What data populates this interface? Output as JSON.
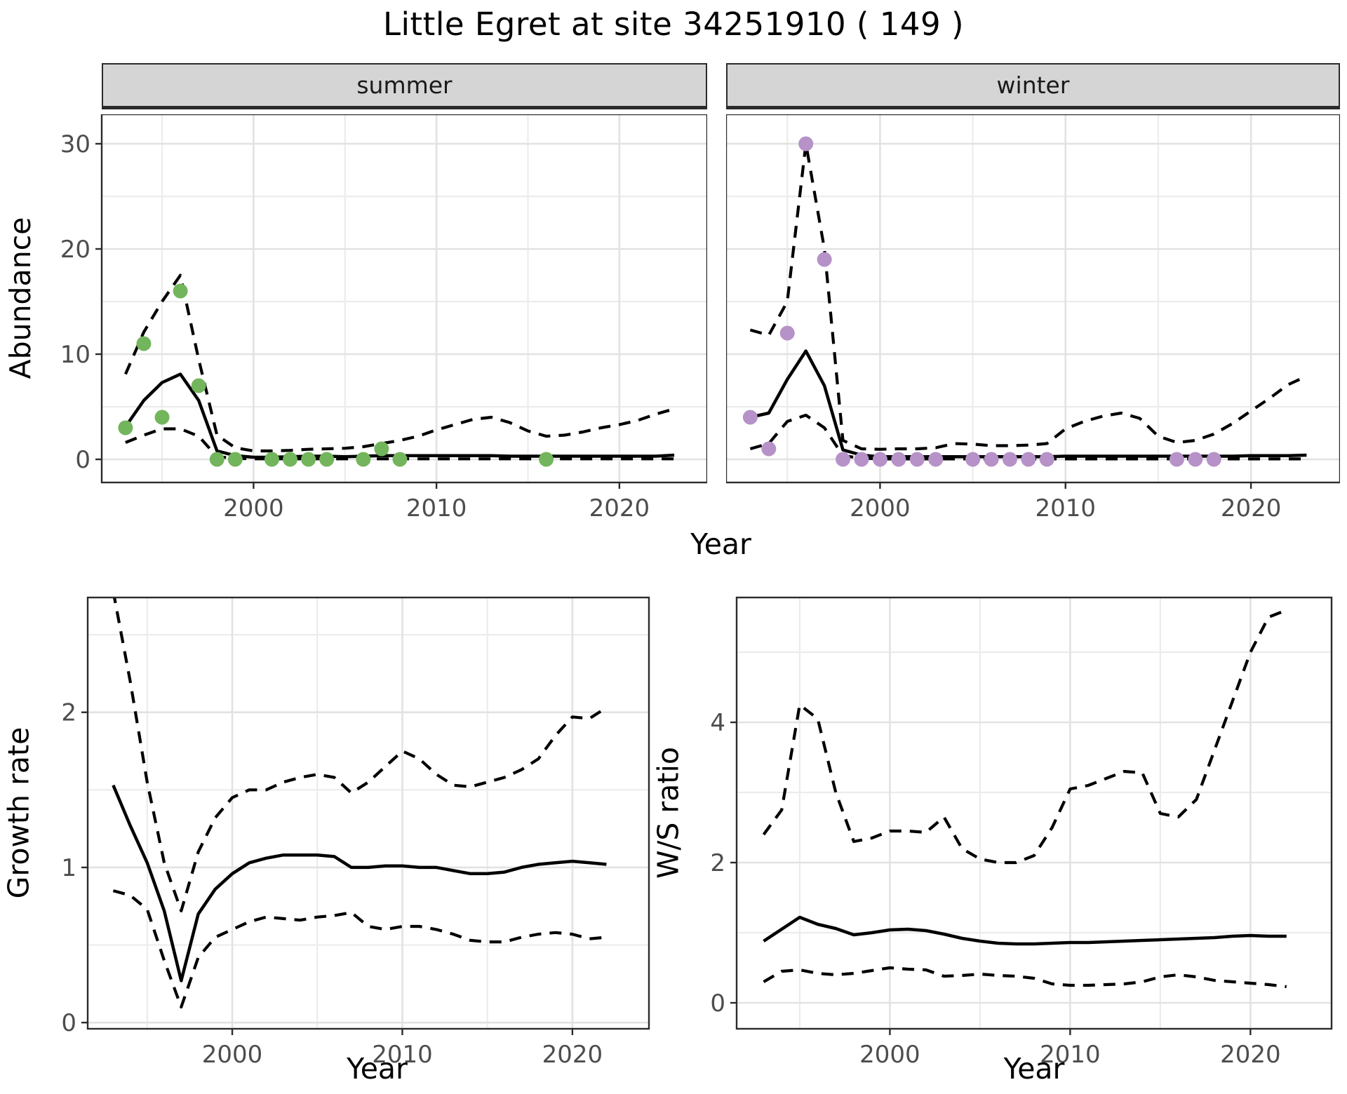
{
  "title": "Little Egret at site 34251910 ( 149 )",
  "top_row": {
    "y_axis_title": "Abundance",
    "x_axis_title": "Year"
  },
  "colors": {
    "summer_point": "#73b55c",
    "winter_point": "#b692c8",
    "line": "#000000",
    "grid_major": "#e2e2e2",
    "grid_minor": "#ececec",
    "panel_border": "#2b2b2b",
    "strip_bg": "#d5d5d5",
    "tick_label": "#4d4d4d",
    "background": "#ffffff"
  },
  "chart_data": [
    {
      "type": "line",
      "facet_label": "summer",
      "ylabel": "Abundance",
      "xlabel": "Year",
      "legend": "none",
      "grid": true,
      "xlim": [
        1991.7,
        2024.8
      ],
      "ylim": [
        -2.2,
        32.8
      ],
      "xticks": [
        2000,
        2010,
        2020
      ],
      "xticks_minor": [
        1995,
        2005,
        2015
      ],
      "yticks": [
        0,
        10,
        20,
        30
      ],
      "yticks_minor": [
        5,
        15,
        25
      ],
      "show_y_tick_labels": true,
      "x": [
        1993,
        1994,
        1995,
        1996,
        1997,
        1998,
        1999,
        2000,
        2001,
        2002,
        2003,
        2004,
        2005,
        2006,
        2007,
        2008,
        2009,
        2010,
        2011,
        2012,
        2013,
        2014,
        2015,
        2016,
        2017,
        2018,
        2019,
        2020,
        2021,
        2022,
        2023
      ],
      "series": [
        {
          "name": "fit",
          "style": "solid",
          "values": [
            3.1,
            5.6,
            7.3,
            8.1,
            5.6,
            0.8,
            0.35,
            0.2,
            0.2,
            0.25,
            0.3,
            0.3,
            0.25,
            0.3,
            0.35,
            0.35,
            0.35,
            0.35,
            0.35,
            0.35,
            0.35,
            0.3,
            0.3,
            0.3,
            0.3,
            0.3,
            0.3,
            0.3,
            0.3,
            0.3,
            0.4
          ]
        },
        {
          "name": "upper_ci",
          "style": "dashed",
          "values": [
            8.1,
            12.1,
            15.0,
            17.5,
            9.5,
            2.3,
            1.1,
            0.8,
            0.8,
            0.85,
            0.95,
            1.0,
            1.05,
            1.2,
            1.5,
            1.8,
            2.2,
            2.8,
            3.3,
            3.8,
            4.0,
            3.5,
            2.7,
            2.2,
            2.3,
            2.6,
            3.0,
            3.3,
            3.7,
            4.3,
            4.8
          ]
        },
        {
          "name": "lower_ci",
          "style": "dashed",
          "values": [
            1.6,
            2.3,
            2.9,
            2.9,
            2.2,
            0.25,
            0.1,
            0.05,
            0.05,
            0.05,
            0.05,
            0.05,
            0.05,
            0.05,
            0.05,
            0.05,
            0.05,
            0.05,
            0.05,
            0.05,
            0.05,
            0.05,
            0.05,
            0.05,
            0.05,
            0.05,
            0.05,
            0.05,
            0.05,
            0.05,
            0.05
          ]
        }
      ],
      "points": {
        "color": "#73b55c",
        "data": [
          [
            1993,
            3
          ],
          [
            1994,
            11
          ],
          [
            1995,
            4
          ],
          [
            1996,
            16
          ],
          [
            1997,
            7
          ],
          [
            1998,
            0
          ],
          [
            1999,
            0
          ],
          [
            2001,
            0
          ],
          [
            2002,
            0
          ],
          [
            2003,
            0
          ],
          [
            2004,
            0
          ],
          [
            2006,
            0
          ],
          [
            2007,
            1
          ],
          [
            2008,
            0
          ],
          [
            2016,
            0
          ]
        ]
      }
    },
    {
      "type": "line",
      "facet_label": "winter",
      "ylabel": "Abundance",
      "xlabel": "Year",
      "legend": "none",
      "grid": true,
      "xlim": [
        1991.7,
        2024.8
      ],
      "ylim": [
        -2.2,
        32.8
      ],
      "xticks": [
        2000,
        2010,
        2020
      ],
      "xticks_minor": [
        1995,
        2005,
        2015
      ],
      "yticks": [
        0,
        10,
        20,
        30
      ],
      "yticks_minor": [
        5,
        15,
        25
      ],
      "show_y_tick_labels": false,
      "x": [
        1993,
        1994,
        1995,
        1996,
        1997,
        1998,
        1999,
        2000,
        2001,
        2002,
        2003,
        2004,
        2005,
        2006,
        2007,
        2008,
        2009,
        2010,
        2011,
        2012,
        2013,
        2014,
        2015,
        2016,
        2017,
        2018,
        2019,
        2020,
        2021,
        2022,
        2023
      ],
      "series": [
        {
          "name": "fit",
          "style": "solid",
          "values": [
            4.0,
            4.4,
            7.6,
            10.3,
            7.0,
            0.9,
            0.4,
            0.25,
            0.25,
            0.25,
            0.25,
            0.25,
            0.25,
            0.25,
            0.25,
            0.25,
            0.25,
            0.3,
            0.3,
            0.3,
            0.3,
            0.3,
            0.3,
            0.3,
            0.3,
            0.3,
            0.3,
            0.35,
            0.35,
            0.35,
            0.4
          ]
        },
        {
          "name": "upper_ci",
          "style": "dashed",
          "values": [
            12.3,
            11.8,
            15.0,
            30.0,
            20.0,
            1.8,
            1.0,
            0.95,
            1.0,
            1.0,
            1.1,
            1.5,
            1.45,
            1.3,
            1.3,
            1.35,
            1.5,
            2.9,
            3.6,
            4.1,
            4.4,
            3.9,
            2.2,
            1.6,
            1.8,
            2.4,
            3.4,
            4.6,
            5.8,
            7.1,
            7.9
          ]
        },
        {
          "name": "lower_ci",
          "style": "dashed",
          "values": [
            1.0,
            1.5,
            3.6,
            4.2,
            3.0,
            0.35,
            0.1,
            0.04,
            0.04,
            0.04,
            0.04,
            0.04,
            0.04,
            0.04,
            0.04,
            0.04,
            0.04,
            0.04,
            0.04,
            0.04,
            0.04,
            0.04,
            0.04,
            0.04,
            0.04,
            0.04,
            0.04,
            0.04,
            0.04,
            0.04,
            0.04
          ]
        }
      ],
      "points": {
        "color": "#b692c8",
        "data": [
          [
            1993,
            4
          ],
          [
            1994,
            1
          ],
          [
            1995,
            12
          ],
          [
            1996,
            30
          ],
          [
            1997,
            19
          ],
          [
            1998,
            0
          ],
          [
            1999,
            0
          ],
          [
            2000,
            0
          ],
          [
            2001,
            0
          ],
          [
            2002,
            0
          ],
          [
            2003,
            0
          ],
          [
            2005,
            0
          ],
          [
            2006,
            0
          ],
          [
            2007,
            0
          ],
          [
            2008,
            0
          ],
          [
            2009,
            0
          ],
          [
            2016,
            0
          ],
          [
            2017,
            0
          ],
          [
            2018,
            0
          ]
        ]
      }
    },
    {
      "type": "line",
      "facet_label": "",
      "ylabel": "Growth rate",
      "xlabel": "Year",
      "legend": "none",
      "grid": true,
      "xlim": [
        1991.5,
        2024.5
      ],
      "ylim": [
        -0.04,
        2.74
      ],
      "xticks": [
        2000,
        2010,
        2020
      ],
      "xticks_minor": [
        1995,
        2005,
        2015
      ],
      "yticks": [
        0,
        1,
        2
      ],
      "yticks_minor": [
        0.5,
        1.5,
        2.5
      ],
      "show_y_tick_labels": true,
      "x": [
        1993,
        1994,
        1995,
        1996,
        1997,
        1998,
        1999,
        2000,
        2001,
        2002,
        2003,
        2004,
        2005,
        2006,
        2007,
        2008,
        2009,
        2010,
        2011,
        2012,
        2013,
        2014,
        2015,
        2016,
        2017,
        2018,
        2019,
        2020,
        2021,
        2022
      ],
      "series": [
        {
          "name": "fit",
          "style": "solid",
          "values": [
            1.53,
            1.27,
            1.03,
            0.72,
            0.27,
            0.7,
            0.86,
            0.96,
            1.03,
            1.06,
            1.08,
            1.08,
            1.08,
            1.07,
            1.0,
            1.0,
            1.01,
            1.01,
            1.0,
            1.0,
            0.98,
            0.96,
            0.96,
            0.97,
            1.0,
            1.02,
            1.03,
            1.04,
            1.03,
            1.02
          ]
        },
        {
          "name": "upper_ci",
          "style": "dashed",
          "values": [
            2.78,
            2.2,
            1.55,
            1.03,
            0.72,
            1.1,
            1.32,
            1.45,
            1.5,
            1.5,
            1.55,
            1.58,
            1.6,
            1.58,
            1.48,
            1.55,
            1.65,
            1.75,
            1.7,
            1.6,
            1.53,
            1.52,
            1.55,
            1.58,
            1.63,
            1.7,
            1.85,
            1.97,
            1.96,
            2.03
          ]
        },
        {
          "name": "lower_ci",
          "style": "dashed",
          "values": [
            0.85,
            0.82,
            0.73,
            0.4,
            0.1,
            0.42,
            0.55,
            0.6,
            0.65,
            0.68,
            0.67,
            0.66,
            0.68,
            0.69,
            0.71,
            0.62,
            0.6,
            0.62,
            0.62,
            0.6,
            0.57,
            0.53,
            0.52,
            0.52,
            0.55,
            0.57,
            0.58,
            0.57,
            0.54,
            0.55
          ]
        }
      ],
      "points": {
        "color": "",
        "data": []
      }
    },
    {
      "type": "line",
      "facet_label": "",
      "ylabel": "W/S ratio",
      "xlabel": "Year",
      "legend": "none",
      "grid": true,
      "xlim": [
        1991.5,
        2024.5
      ],
      "ylim": [
        -0.37,
        5.78
      ],
      "xticks": [
        2000,
        2010,
        2020
      ],
      "xticks_minor": [
        1995,
        2005,
        2015
      ],
      "yticks": [
        0,
        2,
        4
      ],
      "yticks_minor": [
        1,
        3,
        5
      ],
      "show_y_tick_labels": true,
      "x": [
        1993,
        1994,
        1995,
        1996,
        1997,
        1998,
        1999,
        2000,
        2001,
        2002,
        2003,
        2004,
        2005,
        2006,
        2007,
        2008,
        2009,
        2010,
        2011,
        2012,
        2013,
        2014,
        2015,
        2016,
        2017,
        2018,
        2019,
        2020,
        2021,
        2022
      ],
      "series": [
        {
          "name": "fit",
          "style": "solid",
          "values": [
            0.88,
            1.05,
            1.22,
            1.12,
            1.06,
            0.97,
            1.0,
            1.04,
            1.05,
            1.03,
            0.98,
            0.92,
            0.88,
            0.85,
            0.84,
            0.84,
            0.85,
            0.86,
            0.86,
            0.87,
            0.88,
            0.89,
            0.9,
            0.91,
            0.92,
            0.93,
            0.95,
            0.96,
            0.95,
            0.95
          ]
        },
        {
          "name": "upper_ci",
          "style": "dashed",
          "values": [
            2.4,
            2.75,
            4.25,
            4.05,
            3.0,
            2.3,
            2.35,
            2.45,
            2.45,
            2.43,
            2.65,
            2.2,
            2.05,
            2.0,
            2.0,
            2.1,
            2.5,
            3.05,
            3.1,
            3.2,
            3.3,
            3.28,
            2.7,
            2.65,
            2.9,
            3.6,
            4.3,
            5.0,
            5.5,
            5.6
          ]
        },
        {
          "name": "lower_ci",
          "style": "dashed",
          "values": [
            0.3,
            0.45,
            0.47,
            0.42,
            0.4,
            0.42,
            0.46,
            0.5,
            0.48,
            0.47,
            0.38,
            0.39,
            0.41,
            0.39,
            0.38,
            0.35,
            0.27,
            0.25,
            0.25,
            0.26,
            0.27,
            0.3,
            0.37,
            0.4,
            0.37,
            0.32,
            0.3,
            0.28,
            0.26,
            0.23
          ]
        }
      ],
      "points": {
        "color": "",
        "data": []
      }
    }
  ]
}
